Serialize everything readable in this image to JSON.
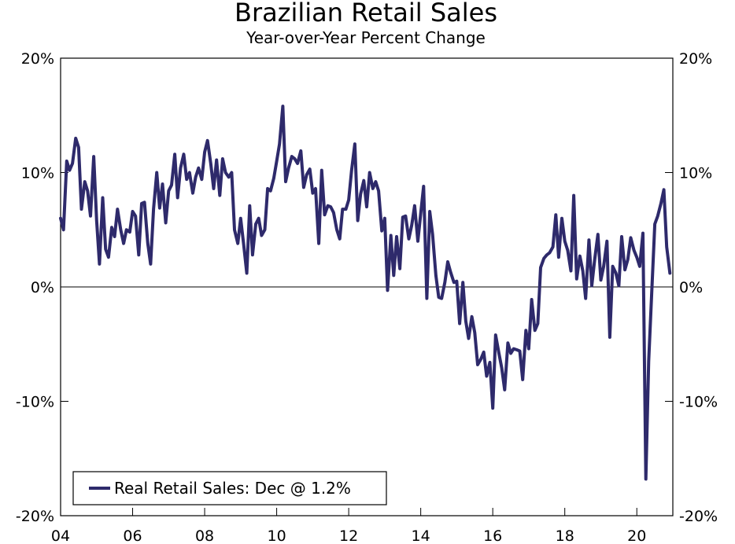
{
  "chart_data": {
    "type": "line",
    "title": "Brazilian Retail Sales",
    "subtitle": "Year-over-Year Percent Change",
    "xlabel": "",
    "ylabel": "",
    "xlim": [
      2004.0,
      2021.0
    ],
    "ylim": [
      -20,
      20
    ],
    "grid": false,
    "zero_line": true,
    "legend_position": "bottom-left",
    "line_color": "#2e2a6b",
    "x_ticks": [
      {
        "value": 2004,
        "label": "04"
      },
      {
        "value": 2006,
        "label": "06"
      },
      {
        "value": 2008,
        "label": "08"
      },
      {
        "value": 2010,
        "label": "10"
      },
      {
        "value": 2012,
        "label": "12"
      },
      {
        "value": 2014,
        "label": "14"
      },
      {
        "value": 2016,
        "label": "16"
      },
      {
        "value": 2018,
        "label": "18"
      },
      {
        "value": 2020,
        "label": "20"
      }
    ],
    "y_ticks": [
      {
        "value": 20,
        "label": "20%"
      },
      {
        "value": 10,
        "label": "10%"
      },
      {
        "value": 0,
        "label": "0%"
      },
      {
        "value": -10,
        "label": "-10%"
      },
      {
        "value": -20,
        "label": "-20%"
      }
    ],
    "series": [
      {
        "name": "Real Retail Sales: Dec @ 1.2%",
        "x": [
          2004.0,
          2004.08,
          2004.17,
          2004.25,
          2004.33,
          2004.42,
          2004.5,
          2004.58,
          2004.67,
          2004.75,
          2004.83,
          2004.92,
          2005.0,
          2005.08,
          2005.17,
          2005.25,
          2005.33,
          2005.42,
          2005.5,
          2005.58,
          2005.67,
          2005.75,
          2005.83,
          2005.92,
          2006.0,
          2006.08,
          2006.17,
          2006.25,
          2006.33,
          2006.42,
          2006.5,
          2006.58,
          2006.67,
          2006.75,
          2006.83,
          2006.92,
          2007.0,
          2007.08,
          2007.17,
          2007.25,
          2007.33,
          2007.42,
          2007.5,
          2007.58,
          2007.67,
          2007.75,
          2007.83,
          2007.92,
          2008.0,
          2008.08,
          2008.17,
          2008.25,
          2008.33,
          2008.42,
          2008.5,
          2008.58,
          2008.67,
          2008.75,
          2008.83,
          2008.92,
          2009.0,
          2009.08,
          2009.17,
          2009.25,
          2009.33,
          2009.42,
          2009.5,
          2009.58,
          2009.67,
          2009.75,
          2009.83,
          2009.92,
          2010.0,
          2010.08,
          2010.17,
          2010.25,
          2010.33,
          2010.42,
          2010.5,
          2010.58,
          2010.67,
          2010.75,
          2010.83,
          2010.92,
          2011.0,
          2011.08,
          2011.17,
          2011.25,
          2011.33,
          2011.42,
          2011.5,
          2011.58,
          2011.67,
          2011.75,
          2011.83,
          2011.92,
          2012.0,
          2012.08,
          2012.17,
          2012.25,
          2012.33,
          2012.42,
          2012.5,
          2012.58,
          2012.67,
          2012.75,
          2012.83,
          2012.92,
          2013.0,
          2013.08,
          2013.17,
          2013.25,
          2013.33,
          2013.42,
          2013.5,
          2013.58,
          2013.67,
          2013.75,
          2013.83,
          2013.92,
          2014.0,
          2014.08,
          2014.17,
          2014.25,
          2014.33,
          2014.42,
          2014.5,
          2014.58,
          2014.67,
          2014.75,
          2014.83,
          2014.92,
          2015.0,
          2015.08,
          2015.17,
          2015.25,
          2015.33,
          2015.42,
          2015.5,
          2015.58,
          2015.67,
          2015.75,
          2015.83,
          2015.92,
          2016.0,
          2016.08,
          2016.17,
          2016.25,
          2016.33,
          2016.42,
          2016.5,
          2016.58,
          2016.67,
          2016.75,
          2016.83,
          2016.92,
          2017.0,
          2017.08,
          2017.17,
          2017.25,
          2017.33,
          2017.42,
          2017.5,
          2017.58,
          2017.67,
          2017.75,
          2017.83,
          2017.92,
          2018.0,
          2018.08,
          2018.17,
          2018.25,
          2018.33,
          2018.42,
          2018.5,
          2018.58,
          2018.67,
          2018.75,
          2018.83,
          2018.92,
          2019.0,
          2019.08,
          2019.17,
          2019.25,
          2019.33,
          2019.42,
          2019.5,
          2019.58,
          2019.67,
          2019.75,
          2019.83,
          2019.92,
          2020.0,
          2020.08,
          2020.17,
          2020.25,
          2020.33,
          2020.42,
          2020.5,
          2020.58,
          2020.67,
          2020.75,
          2020.83,
          2020.92
        ],
        "y": [
          6.0,
          5.0,
          11.0,
          10.2,
          10.8,
          13.0,
          12.2,
          6.8,
          9.2,
          8.4,
          6.2,
          11.4,
          5.8,
          2.0,
          7.8,
          3.3,
          2.6,
          5.2,
          4.4,
          6.8,
          5.0,
          3.8,
          5.0,
          4.8,
          6.6,
          6.2,
          2.8,
          7.3,
          7.4,
          3.8,
          2.0,
          6.8,
          10.0,
          6.9,
          9.0,
          5.6,
          8.4,
          8.9,
          11.6,
          7.8,
          10.4,
          11.6,
          9.4,
          10.0,
          8.2,
          9.6,
          10.4,
          9.4,
          11.8,
          12.8,
          10.8,
          8.6,
          11.1,
          8.0,
          11.2,
          10.0,
          9.6,
          10.0,
          5.0,
          3.8,
          6.0,
          3.8,
          1.2,
          7.1,
          2.8,
          5.5,
          6.0,
          4.5,
          5.0,
          8.6,
          8.4,
          9.5,
          11.0,
          12.5,
          15.8,
          9.2,
          10.4,
          11.4,
          11.2,
          10.8,
          11.9,
          8.7,
          9.8,
          10.3,
          8.2,
          8.6,
          3.8,
          10.2,
          6.3,
          7.1,
          7.0,
          6.5,
          5.0,
          4.2,
          6.8,
          6.8,
          7.6,
          10.2,
          12.5,
          5.8,
          8.1,
          9.3,
          7.0,
          10.0,
          8.6,
          9.2,
          8.4,
          4.9,
          6.0,
          -0.3,
          4.5,
          1.0,
          4.4,
          1.6,
          6.1,
          6.2,
          4.2,
          5.4,
          7.1,
          4.0,
          6.4,
          8.8,
          -1.0,
          6.6,
          4.6,
          1.0,
          -0.9,
          -1.0,
          0.4,
          2.2,
          1.3,
          0.4,
          0.5,
          -3.2,
          0.4,
          -3.0,
          -4.5,
          -2.6,
          -4.0,
          -6.8,
          -6.3,
          -5.7,
          -7.8,
          -6.6,
          -10.6,
          -4.2,
          -5.8,
          -7.1,
          -9.0,
          -4.9,
          -5.8,
          -5.4,
          -5.5,
          -5.6,
          -8.1,
          -3.8,
          -5.4,
          -1.1,
          -3.8,
          -3.2,
          1.7,
          2.5,
          2.8,
          3.0,
          3.5,
          6.3,
          2.6,
          6.0,
          4.0,
          3.2,
          1.4,
          8.0,
          0.7,
          2.7,
          1.4,
          -1.0,
          4.1,
          0.1,
          2.4,
          4.6,
          0.6,
          1.8,
          4.0,
          -4.4,
          1.8,
          1.2,
          0.1,
          4.4,
          1.5,
          2.4,
          4.3,
          3.2,
          2.6,
          1.8,
          4.7,
          -16.8,
          -6.5,
          0.0,
          5.5,
          6.2,
          7.3,
          8.5,
          3.5,
          1.2
        ]
      }
    ]
  }
}
